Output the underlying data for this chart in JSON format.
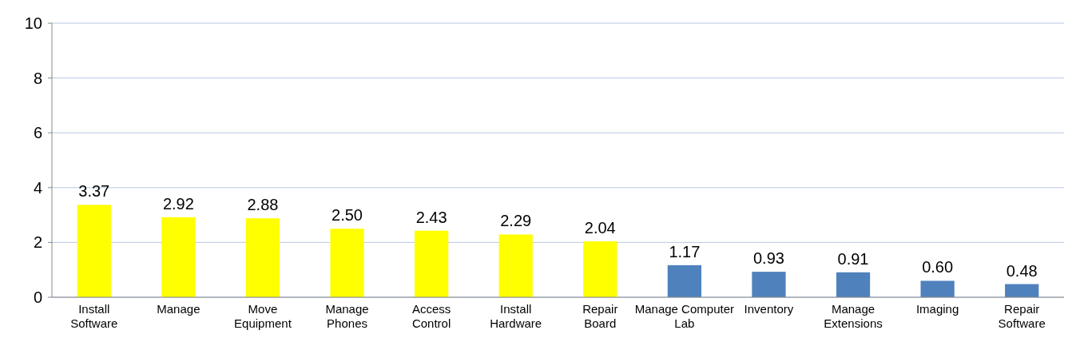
{
  "chart_data": {
    "type": "bar",
    "categories": [
      "Install Software",
      "Manage",
      "Move Equipment",
      "Manage Phones",
      "Access Control",
      "Install Hardware",
      "Repair Board",
      "Manage Computer Lab",
      "Inventory",
      "Manage Extensions",
      "Imaging",
      "Repair Software"
    ],
    "values": [
      3.37,
      2.92,
      2.88,
      2.5,
      2.43,
      2.29,
      2.04,
      1.17,
      0.93,
      0.91,
      0.6,
      0.48
    ],
    "colors": [
      "#ffff00",
      "#ffff00",
      "#ffff00",
      "#ffff00",
      "#ffff00",
      "#ffff00",
      "#ffff00",
      "#4f81bd",
      "#4f81bd",
      "#4f81bd",
      "#4f81bd",
      "#4f81bd"
    ],
    "value_labels": [
      "3.37",
      "2.92",
      "2.88",
      "2.50",
      "2.43",
      "2.29",
      "2.04",
      "1.17",
      "0.93",
      "0.91",
      "0.60",
      "0.48"
    ],
    "ylim": [
      0,
      10
    ],
    "yticks": [
      0,
      2,
      4,
      6,
      8,
      10
    ],
    "grid": "y"
  }
}
